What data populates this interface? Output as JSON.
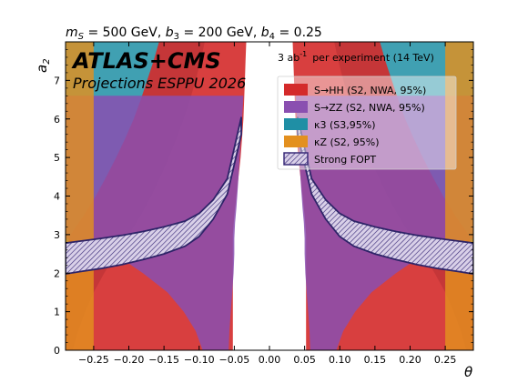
{
  "chart_data": {
    "type": "area",
    "title": "m_S = 500 GeV, b_3 = 200 GeV, b_4 = 0.25",
    "title_parts": {
      "m_sym": "m",
      "m_sub": "S",
      "m_val": " = 500 GeV, ",
      "b3_sym": "b",
      "b3_sub": "3",
      "b3_val": " = 200 GeV, ",
      "b4_sym": "b",
      "b4_sub": "4",
      "b4_val": " = 0.25"
    },
    "brand": "ATLAS+CMS",
    "subtitle": "Projections ESPPU 2026",
    "lumi_text": {
      "value": "3 ab",
      "exponent": "-1",
      "rest": "per experiment (14 TeV)"
    },
    "xlabel": "θ",
    "ylabel": "a",
    "ylabel_sub": "2",
    "xlim": [
      -0.29,
      0.29
    ],
    "ylim": [
      0,
      8
    ],
    "xticks": [
      "−0.25",
      "−0.20",
      "−0.15",
      "−0.10",
      "−0.05",
      "0.00",
      "0.05",
      "0.10",
      "0.15",
      "0.20",
      "0.25"
    ],
    "xtick_values": [
      -0.25,
      -0.2,
      -0.15,
      -0.1,
      -0.05,
      0.0,
      0.05,
      0.1,
      0.15,
      0.2,
      0.25
    ],
    "yticks": [
      "0",
      "1",
      "2",
      "3",
      "4",
      "5",
      "6",
      "7"
    ],
    "ytick_values": [
      0,
      1,
      2,
      3,
      4,
      5,
      6,
      7
    ],
    "grid": false,
    "legend_position": "top-right",
    "legend": [
      {
        "label": "S→HH  (S2, NWA, 95%)",
        "color": "#d42a2a",
        "hatch": false
      },
      {
        "label": "S→ZZ  (S2, NWA, 95%)",
        "color": "#8a4fb0",
        "hatch": false
      },
      {
        "label": "κ3  (S3,95%)",
        "color": "#1f8fa5",
        "hatch": false
      },
      {
        "label": "κZ  (S2, 95%)",
        "color": "#e3901f",
        "hatch": false
      },
      {
        "label": "Strong FOPT",
        "color": "#3b2d7a",
        "hatch": true
      }
    ],
    "series": [
      {
        "name": "κZ  (S2, 95%)",
        "region": "excluded for |θ| ≥ 0.25",
        "x": [
          -0.29,
          -0.25,
          0.25,
          0.29
        ],
        "boundary": [
          0.25
        ]
      },
      {
        "name": "κ3  (S3,95%)",
        "region": "excluded outside the boundary (|θ| greater than boundary value)",
        "y": [
          0.0,
          0.5,
          1.0,
          1.5,
          2.0,
          2.5,
          3.0,
          3.5,
          4.0,
          4.5,
          5.0,
          5.5,
          6.0,
          6.5,
          7.0,
          7.5,
          8.0
        ],
        "theta_boundary": [
          0.28,
          0.272,
          0.262,
          0.25,
          0.235,
          0.218,
          0.2,
          0.183,
          0.168,
          0.155,
          0.143,
          0.132,
          0.122,
          0.113,
          0.105,
          0.098,
          0.092
        ]
      },
      {
        "name": "S→HH  (S2, NWA, 95%)",
        "region": "excluded between inner and outer boundary",
        "y": [
          0.0,
          0.5,
          1.0,
          1.5,
          2.0,
          2.5,
          3.0,
          3.5,
          4.0,
          4.5,
          5.0,
          5.5,
          6.0,
          6.5,
          7.0,
          7.5,
          8.0
        ],
        "theta_outer": [
          0.29,
          0.29,
          0.29,
          0.29,
          0.29,
          0.29,
          0.283,
          0.264,
          0.247,
          0.232,
          0.218,
          0.205,
          0.193,
          0.183,
          0.174,
          0.165,
          0.157
        ],
        "theta_inner": [
          0.052,
          0.052,
          0.052,
          0.052,
          0.052,
          0.052,
          0.052,
          0.05,
          0.047,
          0.044,
          0.041,
          0.039,
          0.037,
          0.036,
          0.035,
          0.034,
          0.033
        ]
      },
      {
        "name": "S→ZZ  (S2, NWA, 95%)",
        "region": "excluded between inner and outer boundary",
        "y": [
          0.0,
          0.5,
          1.0,
          1.5,
          2.0,
          2.5,
          2.9,
          3.3,
          3.7,
          4.2,
          4.8,
          5.4,
          6.0,
          6.6
        ],
        "theta_outer": [
          0.095,
          0.105,
          0.122,
          0.145,
          0.18,
          0.22,
          0.29,
          0.29,
          0.29,
          0.29,
          0.29,
          0.29,
          0.29,
          0.29
        ],
        "theta_inner": [
          0.058,
          0.057,
          0.055,
          0.053,
          0.051,
          0.05,
          0.05,
          0.049,
          0.047,
          0.045,
          0.043,
          0.041,
          0.039,
          0.037
        ]
      },
      {
        "name": "Strong FOPT",
        "region": "hatched band",
        "x": [
          0.04,
          0.06,
          0.08,
          0.1,
          0.12,
          0.15,
          0.18,
          0.21,
          0.24,
          0.27,
          0.29
        ],
        "y_upper": [
          6.05,
          4.45,
          3.9,
          3.55,
          3.35,
          3.2,
          3.08,
          2.98,
          2.9,
          2.83,
          2.78
        ],
        "y_lower": [
          5.6,
          4.05,
          3.4,
          2.95,
          2.7,
          2.5,
          2.35,
          2.22,
          2.12,
          2.04,
          1.98
        ],
        "symmetric_in_theta": true
      }
    ]
  }
}
